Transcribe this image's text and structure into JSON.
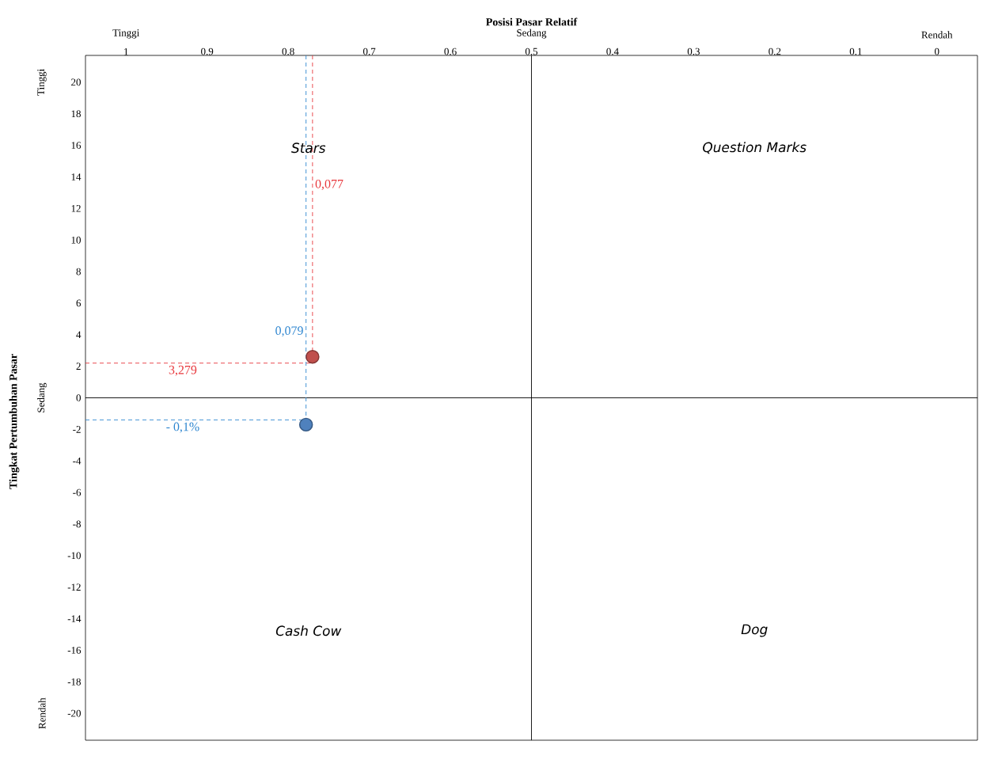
{
  "chart_data": {
    "type": "scatter",
    "xlabel": "Posisi Pasar Relatif",
    "ylabel": "Tingkat Pertumbuhan Pasar",
    "xlim": [
      1.05,
      -0.05
    ],
    "xticks": [
      1,
      0.9,
      0.8,
      0.7,
      0.6,
      0.5,
      0.4,
      0.3,
      0.2,
      0.1,
      0
    ],
    "ylim": [
      -21.7,
      21.7
    ],
    "yticks": [
      -20,
      -18,
      -16,
      -14,
      -12,
      -10,
      -8,
      -6,
      -4,
      -2,
      0,
      2,
      4,
      6,
      8,
      10,
      12,
      14,
      16,
      18,
      20
    ],
    "series": [
      {
        "marker": "circle",
        "color": "#c0504d",
        "x": [
          0.77
        ],
        "values": [
          2.6
        ]
      },
      {
        "marker": "circle",
        "color": "#4f81bd",
        "x": [
          0.778
        ],
        "values": [
          -1.7
        ]
      },
      {
        "type": "line",
        "marker": "none",
        "line_style": "dashed",
        "color": "#e8383d",
        "x": [
          0.77,
          0.77
        ],
        "values": [
          21.7,
          2.6
        ]
      },
      {
        "type": "line",
        "marker": "none",
        "line_style": "dashed",
        "color": "#e8383d",
        "x": [
          1.05,
          0.77
        ],
        "values": [
          2.2,
          2.2
        ]
      },
      {
        "type": "line",
        "marker": "none",
        "line_style": "dashed",
        "color": "#2e86d0",
        "x": [
          0.778,
          0.778
        ],
        "values": [
          21.7,
          -1.7
        ]
      },
      {
        "type": "line",
        "marker": "none",
        "line_style": "dashed",
        "color": "#2e86d0",
        "x": [
          1.05,
          0.778
        ],
        "values": [
          -1.4,
          -1.4
        ]
      }
    ],
    "ref_lines": [
      {
        "axis": "x",
        "value": 0.5,
        "color": "#000000"
      },
      {
        "axis": "y",
        "value": 0,
        "color": "#000000"
      }
    ],
    "annotations": [
      "Stars",
      "Question Marks",
      "Cash Cow",
      "Dog",
      "Tinggi",
      "Sedang",
      "Rendah",
      "Tinggi",
      "Sedang",
      "Rendah",
      {
        "text": "0,077",
        "x": 0.77,
        "y": 13.5
      },
      {
        "text": "3,279",
        "x": 0.93,
        "y": 2.2
      },
      {
        "text": "0,079",
        "x": 0.778,
        "y": 4.2
      },
      {
        "text": "- 0,1%",
        "x": 0.93,
        "y": -1.4
      }
    ]
  }
}
